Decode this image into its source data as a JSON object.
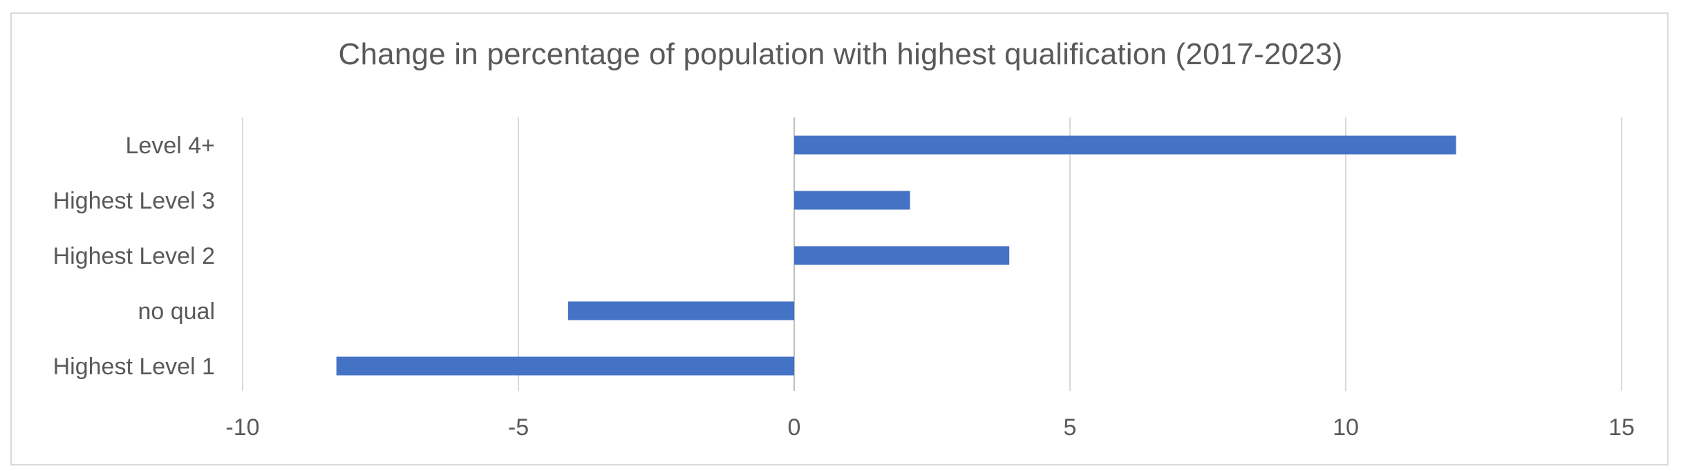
{
  "chart_data": {
    "type": "bar",
    "orientation": "horizontal",
    "title": "Change in percentage of population with highest qualification (2017-2023)",
    "xlabel": "",
    "ylabel": "",
    "categories": [
      "Level 4+",
      "Highest Level 3",
      "Highest Level 2",
      "no qual",
      "Highest Level 1"
    ],
    "values": [
      12.0,
      2.1,
      3.9,
      -4.1,
      -8.3
    ],
    "xlim": [
      -10,
      15
    ],
    "xticks": [
      -10,
      -5,
      0,
      5,
      10,
      15
    ],
    "grid": true,
    "legend": "none",
    "bar_color": "#4472c4",
    "grid_color": "#d9d9d9"
  }
}
